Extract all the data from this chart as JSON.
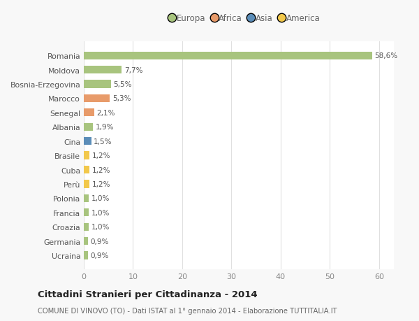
{
  "categories": [
    "Ucraina",
    "Germania",
    "Croazia",
    "Francia",
    "Polonia",
    "Perù",
    "Cuba",
    "Brasile",
    "Cina",
    "Albania",
    "Senegal",
    "Marocco",
    "Bosnia-Erzegovina",
    "Moldova",
    "Romania"
  ],
  "values": [
    0.9,
    0.9,
    1.0,
    1.0,
    1.0,
    1.2,
    1.2,
    1.2,
    1.5,
    1.9,
    2.1,
    5.3,
    5.5,
    7.7,
    58.6
  ],
  "labels": [
    "0,9%",
    "0,9%",
    "1,0%",
    "1,0%",
    "1,0%",
    "1,2%",
    "1,2%",
    "1,2%",
    "1,5%",
    "1,9%",
    "2,1%",
    "5,3%",
    "5,5%",
    "7,7%",
    "58,6%"
  ],
  "colors": [
    "#a8c47e",
    "#a8c47e",
    "#a8c47e",
    "#a8c47e",
    "#a8c47e",
    "#f2c84b",
    "#f2c84b",
    "#f2c84b",
    "#5b8db8",
    "#a8c47e",
    "#e89b6a",
    "#e89b6a",
    "#a8c47e",
    "#a8c47e",
    "#a8c47e"
  ],
  "legend_labels": [
    "Europa",
    "Africa",
    "Asia",
    "America"
  ],
  "legend_colors": [
    "#a8c47e",
    "#e89b6a",
    "#5b8db8",
    "#f2c84b"
  ],
  "title": "Cittadini Stranieri per Cittadinanza - 2014",
  "subtitle": "COMUNE DI VINOVO (TO) - Dati ISTAT al 1° gennaio 2014 - Elaborazione TUTTITALIA.IT",
  "xlim": [
    0,
    63
  ],
  "xticks": [
    0,
    10,
    20,
    30,
    40,
    50,
    60
  ],
  "background_color": "#f8f8f8",
  "plot_bg_color": "#ffffff",
  "grid_color": "#e0e0e0"
}
